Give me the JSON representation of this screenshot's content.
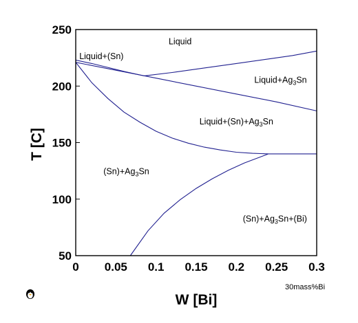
{
  "chart_data": {
    "type": "line",
    "xlabel": "W [Bi]",
    "ylabel": "T [C]",
    "xlim": [
      0,
      0.3
    ],
    "ylim": [
      50,
      250
    ],
    "x_ticks": [
      "0",
      "0.05",
      "0.1",
      "0.15",
      "0.2",
      "0.25",
      "0.3"
    ],
    "y_ticks": [
      "50",
      "100",
      "150",
      "200",
      "250"
    ],
    "grid": false,
    "legend": "none",
    "line_color": "#1f1f8f",
    "x_unit_note": "30mass%Bi",
    "region_labels": [
      {
        "text": "Liquid",
        "x": 0.13,
        "y": 237
      },
      {
        "text": "Liquid+(Sn)",
        "x": 0.032,
        "y": 224
      },
      {
        "text": "Liquid+Ag3Sn",
        "x": 0.255,
        "y": 203
      },
      {
        "text": "Liquid+(Sn)+Ag3Sn",
        "x": 0.2,
        "y": 166
      },
      {
        "text": "(Sn)+Ag3Sn",
        "x": 0.063,
        "y": 122
      },
      {
        "text": "(Sn)+Ag3Sn+(Bi)",
        "x": 0.248,
        "y": 80
      }
    ],
    "series": [
      {
        "x": [
          0,
          0.02,
          0.04,
          0.06,
          0.085
        ],
        "y": [
          223,
          220,
          216.5,
          213,
          209
        ]
      },
      {
        "x": [
          0.085,
          0.12,
          0.16,
          0.2,
          0.24,
          0.27,
          0.3
        ],
        "y": [
          209,
          212,
          216,
          220,
          224,
          227,
          231
        ]
      },
      {
        "x": [
          0,
          0.05,
          0.1,
          0.15,
          0.2,
          0.25,
          0.3
        ],
        "y": [
          221,
          214,
          207,
          200,
          193,
          186,
          178
        ]
      },
      {
        "x": [
          0,
          0.02,
          0.04,
          0.06,
          0.08,
          0.1,
          0.12,
          0.14,
          0.16,
          0.18,
          0.2,
          0.22,
          0.24
        ],
        "y": [
          221,
          203,
          189,
          177,
          168,
          160,
          154,
          149.5,
          146,
          143.5,
          141.5,
          140.5,
          140
        ]
      },
      {
        "x": [
          0.24,
          0.3
        ],
        "y": [
          140,
          140
        ]
      },
      {
        "x": [
          0.068,
          0.09,
          0.11,
          0.13,
          0.15,
          0.17,
          0.19,
          0.21,
          0.24
        ],
        "y": [
          50,
          72,
          87.5,
          99.5,
          109.5,
          118,
          125.5,
          132,
          140
        ]
      }
    ]
  }
}
